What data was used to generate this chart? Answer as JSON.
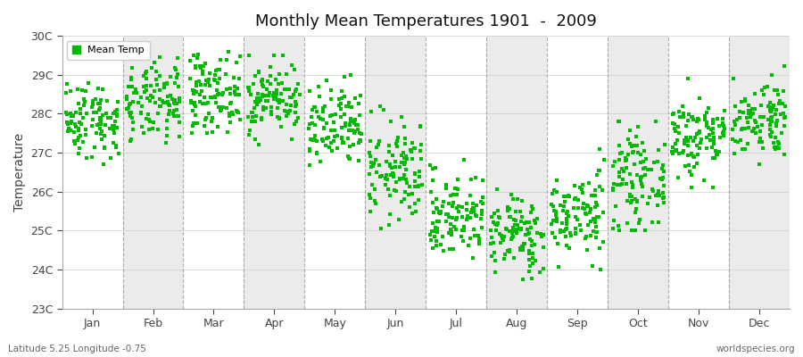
{
  "title": "Monthly Mean Temperatures 1901  -  2009",
  "ylabel": "Temperature",
  "xlabel_bottom_left": "Latitude 5.25 Longitude -0.75",
  "xlabel_bottom_right": "worldspecies.org",
  "legend_label": "Mean Temp",
  "marker_color": "#00bb00",
  "marker_size": 3.5,
  "ylim": [
    23,
    30
  ],
  "ytick_labels": [
    "23C",
    "24C",
    "25C",
    "26C",
    "27C",
    "28C",
    "29C",
    "30C"
  ],
  "ytick_values": [
    23,
    24,
    25,
    26,
    27,
    28,
    29,
    30
  ],
  "months": [
    "Jan",
    "Feb",
    "Mar",
    "Apr",
    "May",
    "Jun",
    "Jul",
    "Aug",
    "Sep",
    "Oct",
    "Nov",
    "Dec"
  ],
  "background_color": "#ffffff",
  "alt_band_color": "#ebebeb",
  "grid_color": "#888888",
  "n_years": 109,
  "seed": 42,
  "monthly_mean": [
    27.85,
    28.25,
    28.55,
    28.4,
    27.6,
    26.5,
    25.4,
    24.9,
    25.4,
    26.3,
    27.4,
    27.9
  ],
  "monthly_std": [
    0.5,
    0.5,
    0.5,
    0.45,
    0.55,
    0.65,
    0.55,
    0.5,
    0.55,
    0.6,
    0.55,
    0.5
  ],
  "monthly_min": [
    26.7,
    27.0,
    27.5,
    27.2,
    26.3,
    24.9,
    23.8,
    23.6,
    24.0,
    25.0,
    26.1,
    26.7
  ],
  "monthly_max": [
    29.5,
    30.05,
    30.05,
    29.5,
    29.2,
    28.2,
    27.2,
    26.9,
    27.1,
    27.8,
    28.9,
    29.4
  ]
}
